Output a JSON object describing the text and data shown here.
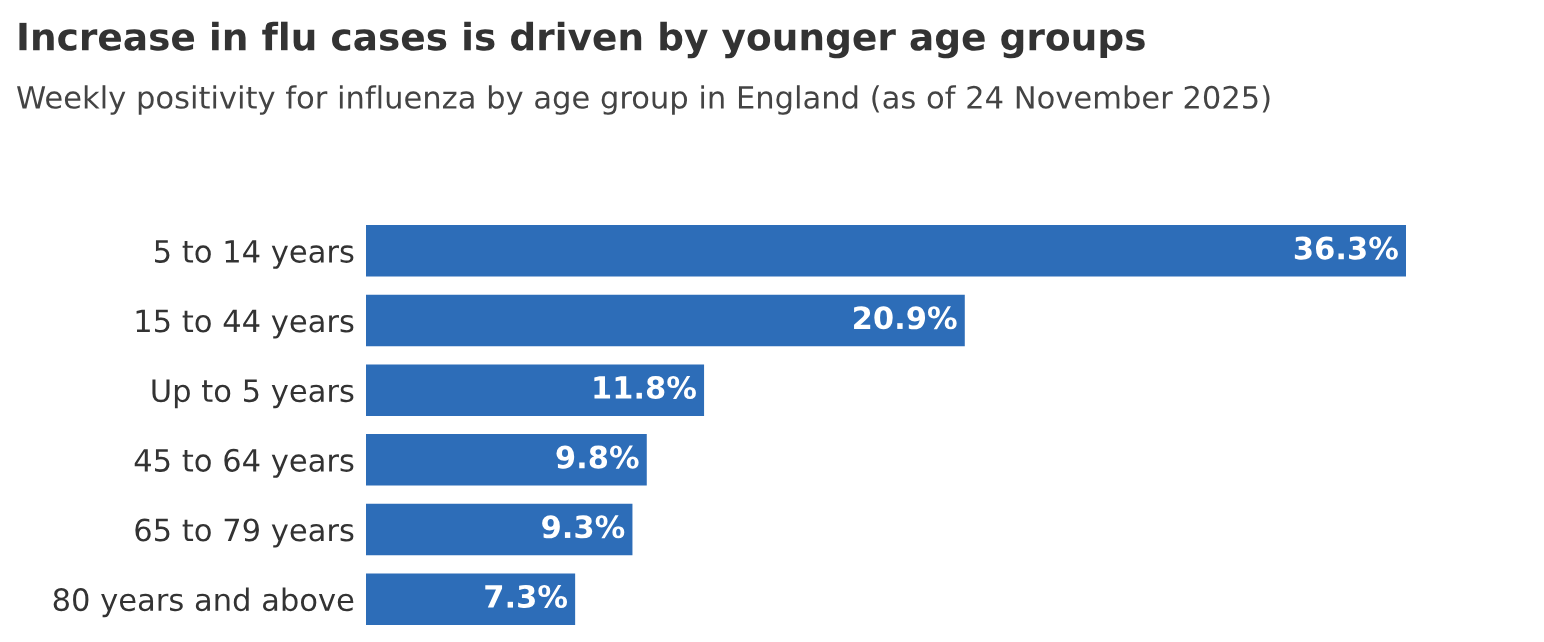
{
  "chart_data": {
    "type": "bar",
    "orientation": "horizontal",
    "title": "Increase in flu cases is driven by younger age groups",
    "subtitle": "Weekly positivity for influenza by age group in England (as of 24 November 2025)",
    "categories": [
      "5 to 14 years",
      "15 to 44 years",
      "Up to 5 years",
      "45 to 64 years",
      "65 to 79 years",
      "80 years and above"
    ],
    "values": [
      36.3,
      20.9,
      11.8,
      9.8,
      9.3,
      7.3
    ],
    "value_labels": [
      "36.3%",
      "20.9%",
      "11.8%",
      "9.8%",
      "9.3%",
      "7.3%"
    ],
    "color": "#2d6db8",
    "grid": false,
    "legend": false
  }
}
